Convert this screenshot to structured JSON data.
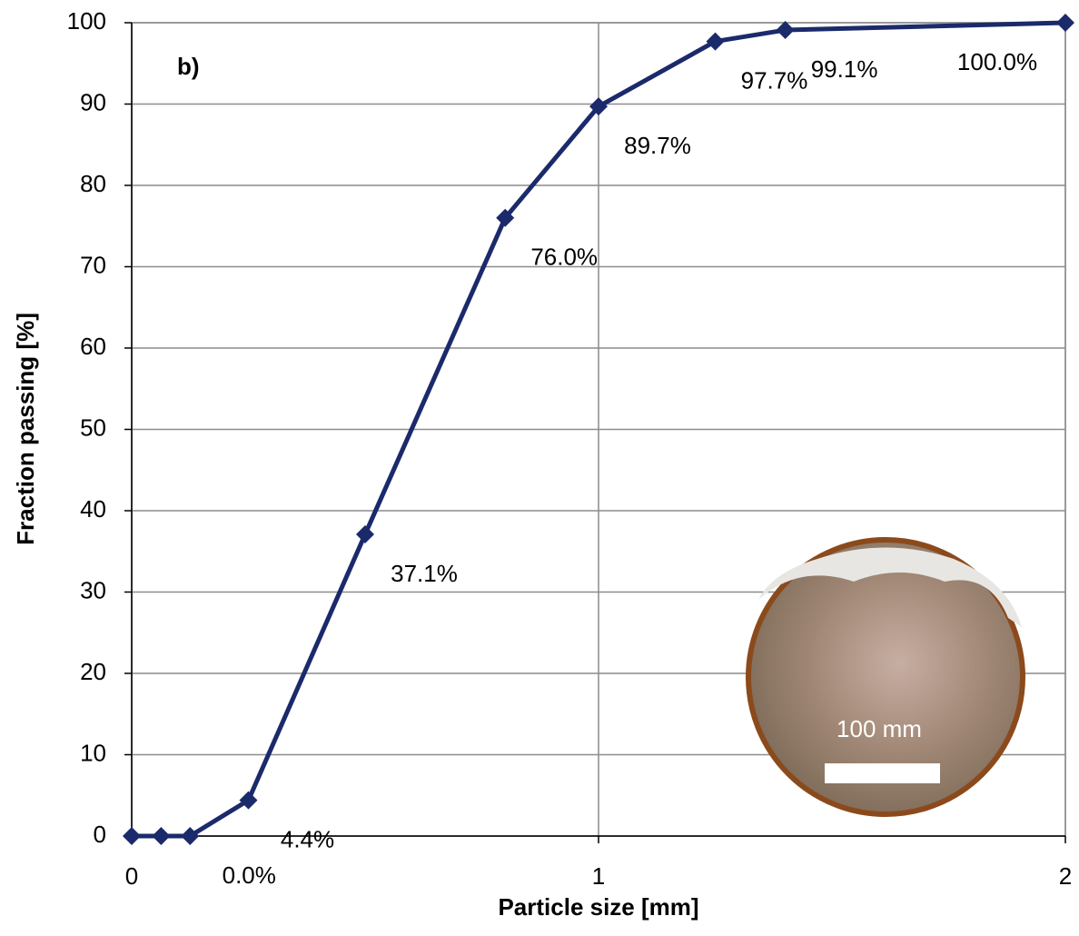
{
  "chart_data": {
    "type": "line",
    "annotation": "b)",
    "x_label": "Particle size [mm]",
    "y_label": "Fraction passing [%]",
    "x": [
      0,
      0.063,
      0.125,
      0.25,
      0.5,
      0.8,
      1,
      1.25,
      1.4,
      2
    ],
    "values": [
      0,
      0,
      0,
      4.4,
      37.1,
      76.0,
      89.7,
      97.7,
      99.1,
      100.0
    ],
    "value_labels": [
      null,
      null,
      "0.0%",
      "4.4%",
      "37.1%",
      "76.0%",
      "89.7%",
      "97.7%",
      "99.1%",
      "100.0%"
    ],
    "color": "#1b2a6b",
    "xlim": [
      0,
      2
    ],
    "xticks": [
      0,
      1,
      2
    ],
    "ylim": [
      0,
      100
    ],
    "yticks": [
      0,
      10,
      20,
      30,
      40,
      50,
      60,
      70,
      80,
      90,
      100
    ],
    "grid": true,
    "inset": {
      "scale_label": "100 mm"
    }
  }
}
